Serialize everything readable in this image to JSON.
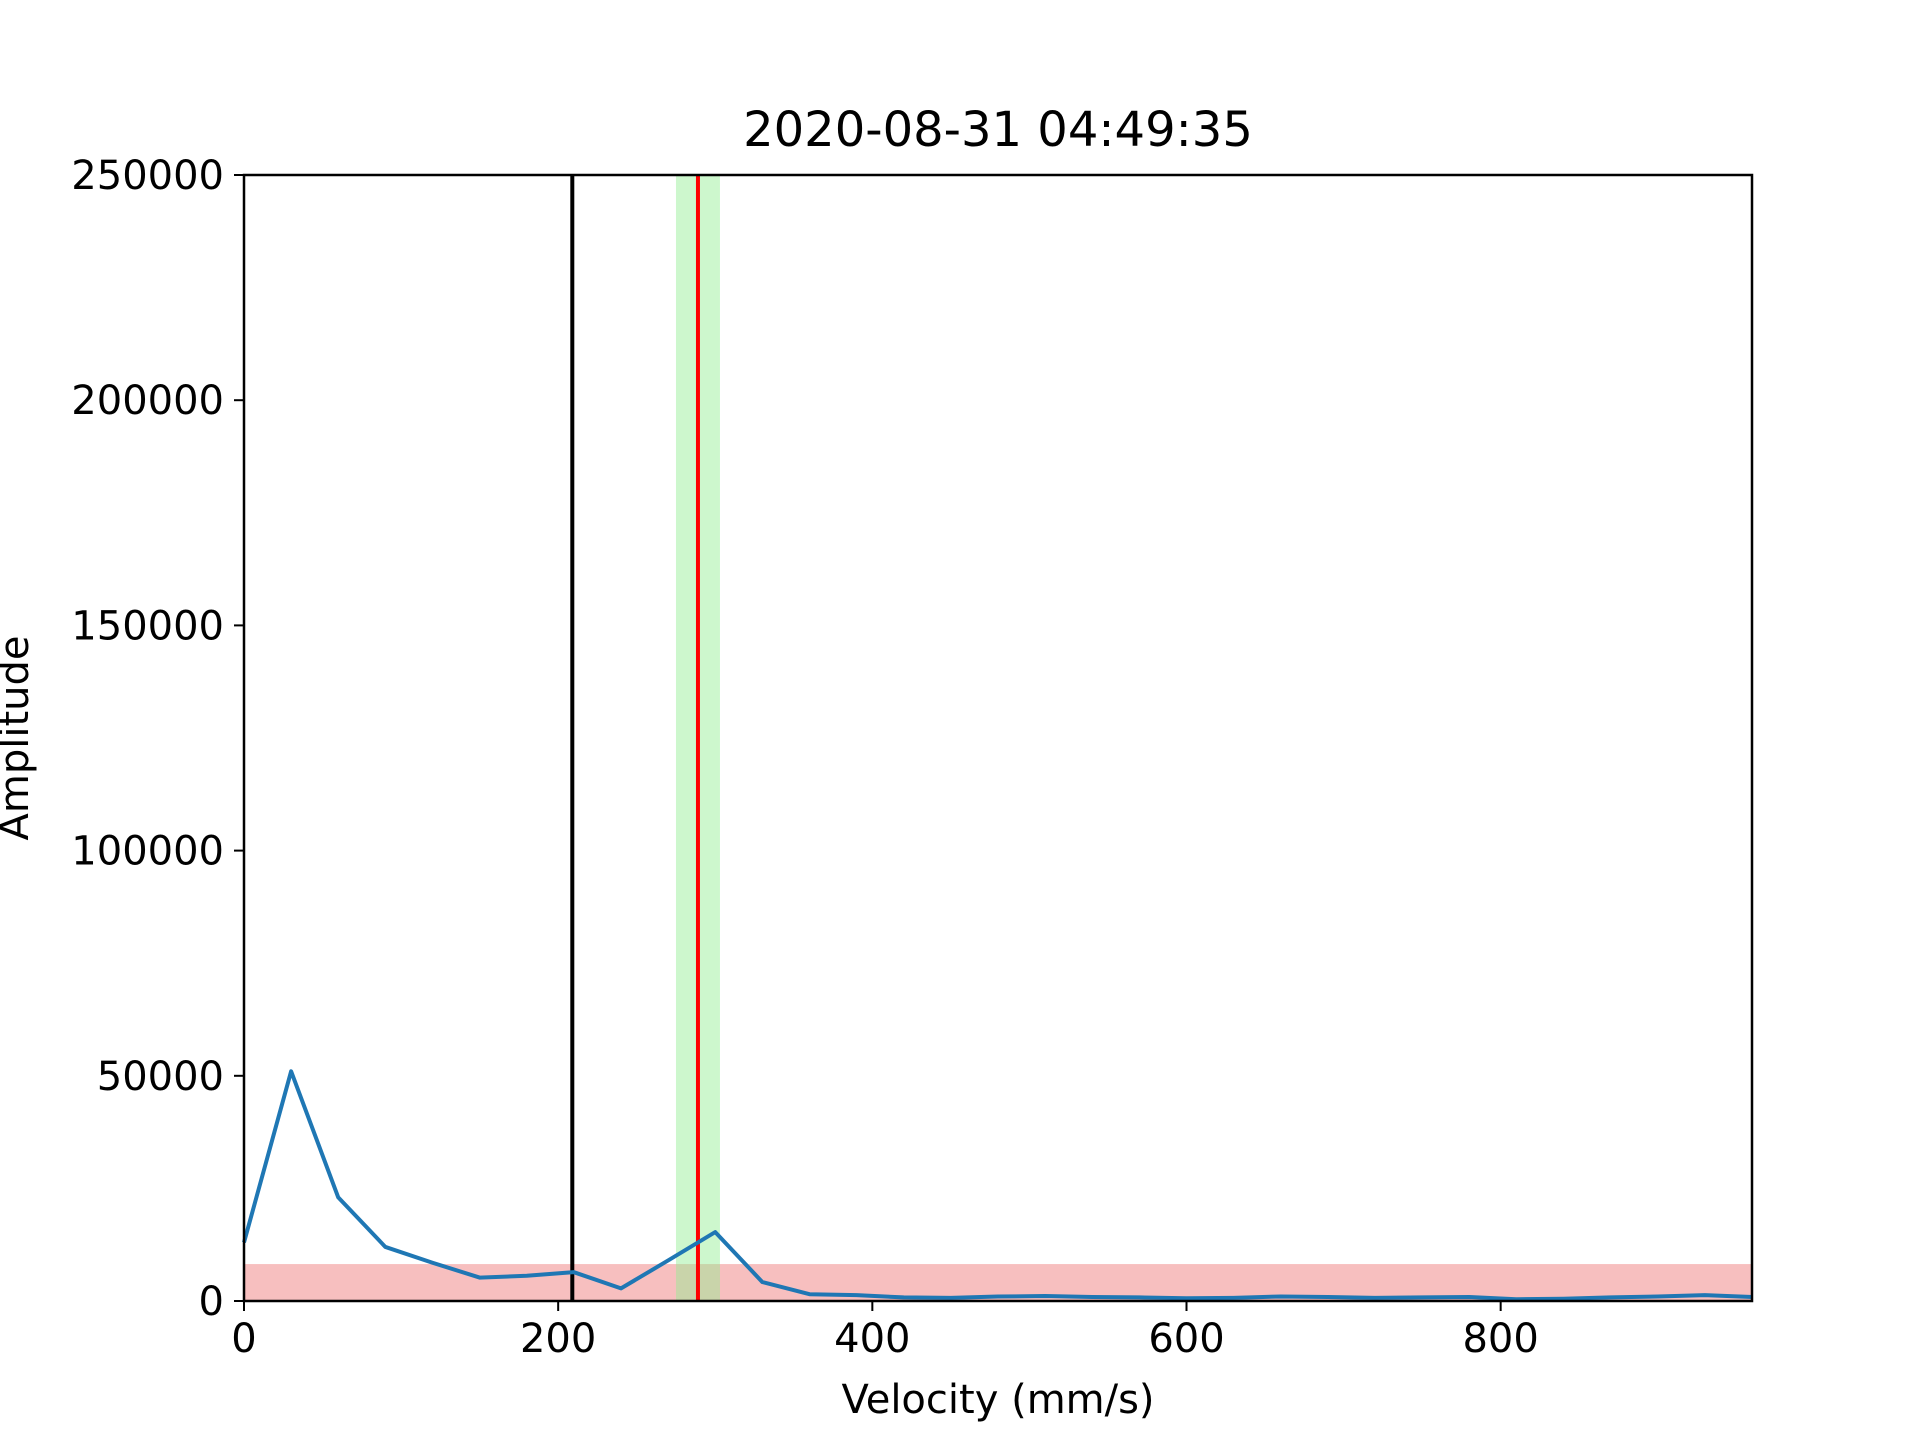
{
  "chart_data": {
    "type": "line",
    "title": "2020-08-31 04:49:35",
    "xlabel": "Velocity (mm/s)",
    "ylabel": "Amplitude",
    "xlim": [
      0,
      960
    ],
    "ylim": [
      0,
      250000
    ],
    "xticks": [
      0,
      200,
      400,
      600,
      800
    ],
    "yticks": [
      0,
      50000,
      100000,
      150000,
      200000,
      250000
    ],
    "grid": false,
    "series": [
      {
        "color": "#1f77b4",
        "x": [
          0,
          30,
          60,
          90,
          120,
          150,
          180,
          210,
          240,
          270,
          300,
          330,
          360,
          390,
          420,
          450,
          480,
          510,
          540,
          570,
          600,
          630,
          660,
          690,
          720,
          750,
          780,
          810,
          840,
          870,
          900,
          930,
          960
        ],
        "y": [
          13000,
          51000,
          23000,
          12000,
          8500,
          5200,
          5600,
          6400,
          2800,
          9000,
          15300,
          4200,
          1500,
          1300,
          800,
          700,
          1000,
          1100,
          900,
          800,
          600,
          700,
          1000,
          900,
          700,
          800,
          900,
          400,
          500,
          800,
          1000,
          1300,
          900
        ]
      }
    ],
    "vlines": [
      {
        "x": 209,
        "color": "#000000"
      },
      {
        "x": 289,
        "color": "#ff0000"
      }
    ],
    "vspans": [
      {
        "x0": 275,
        "x1": 303,
        "color": "#90ee90",
        "opacity": 0.45
      }
    ],
    "hspans": [
      {
        "y0": 0,
        "y1": 8200,
        "color": "#f08080",
        "opacity": 0.5
      }
    ]
  }
}
